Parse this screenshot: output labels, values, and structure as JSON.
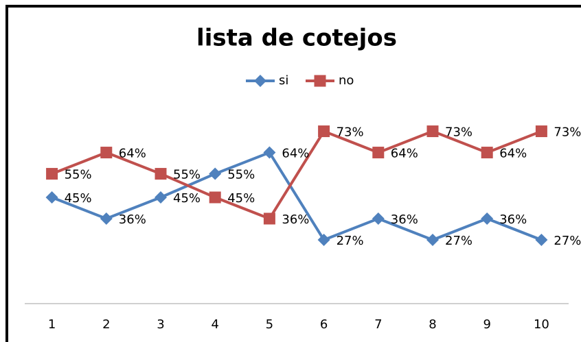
{
  "chart_data": {
    "type": "line",
    "title": "lista de cotejos",
    "categories": [
      "1",
      "2",
      "3",
      "4",
      "5",
      "6",
      "7",
      "8",
      "9",
      "10"
    ],
    "series": [
      {
        "name": "si",
        "color": "#4f81bd",
        "values": [
          45,
          36,
          45,
          55,
          64,
          27,
          36,
          27,
          36,
          27
        ],
        "value_labels": [
          "45%",
          "36%",
          "45%",
          "55%",
          "64%",
          "27%",
          "36%",
          "27%",
          "36%",
          "27%"
        ]
      },
      {
        "name": "no",
        "color": "#c0504d",
        "values": [
          55,
          64,
          55,
          45,
          36,
          73,
          64,
          73,
          64,
          73
        ],
        "value_labels": [
          "55%",
          "64%",
          "55%",
          "45%",
          "36%",
          "73%",
          "64%",
          "73%",
          "64%",
          "73%"
        ]
      }
    ],
    "ylim": [
      0,
      90
    ],
    "legend": "top"
  }
}
